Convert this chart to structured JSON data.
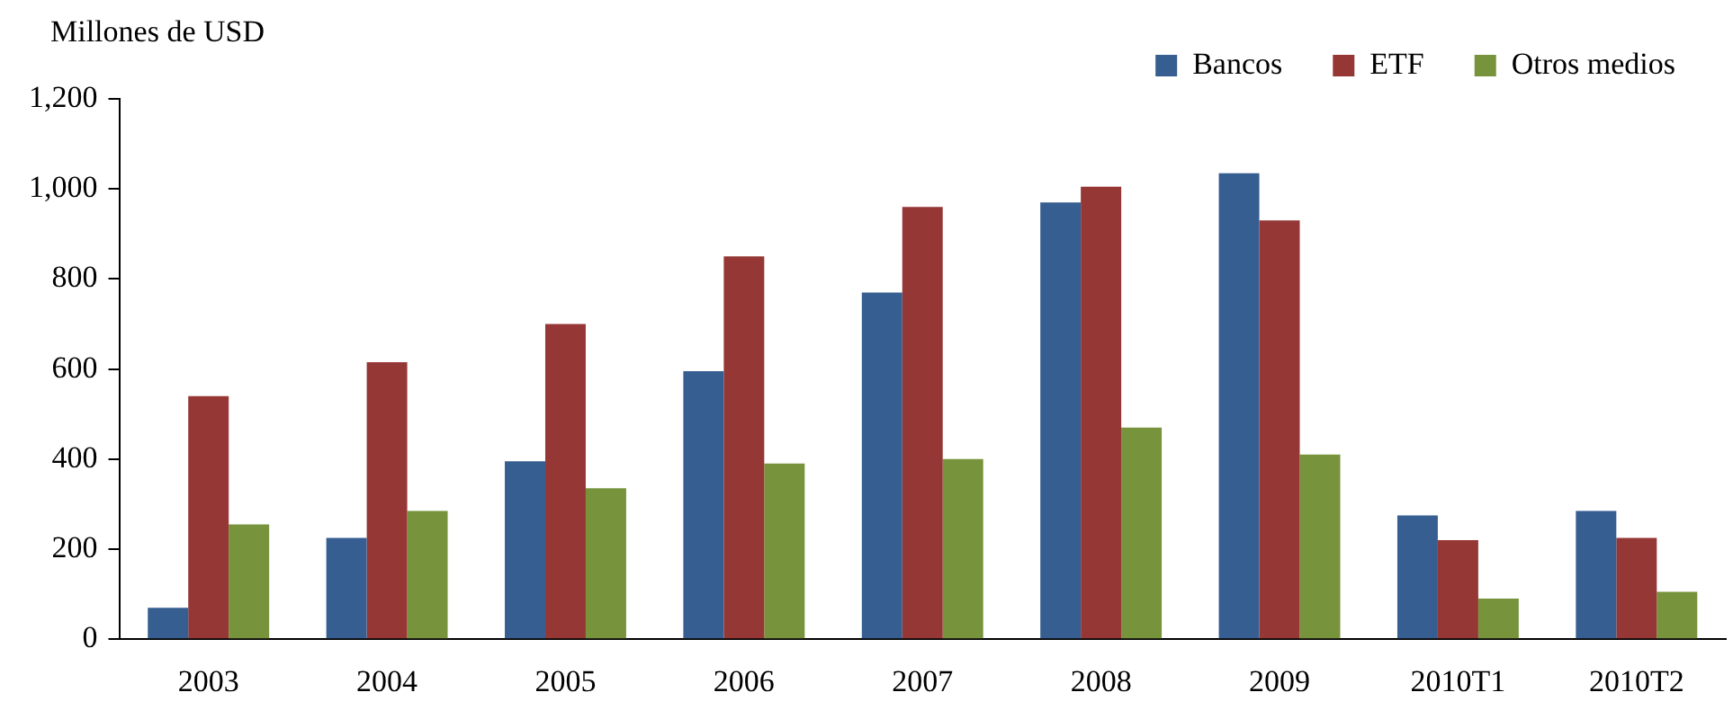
{
  "chart_data": {
    "type": "bar",
    "ylabel": "Millones de USD",
    "categories": [
      "2003",
      "2004",
      "2005",
      "2006",
      "2007",
      "2008",
      "2009",
      "2010T1",
      "2010T2"
    ],
    "series": [
      {
        "name": "Bancos",
        "color": "#375e91",
        "values": [
          70,
          225,
          395,
          595,
          770,
          970,
          1035,
          275,
          285
        ]
      },
      {
        "name": "ETF",
        "color": "#953735",
        "values": [
          540,
          615,
          700,
          850,
          960,
          1005,
          930,
          220,
          225
        ]
      },
      {
        "name": "Otros medios",
        "color": "#77933c",
        "values": [
          255,
          285,
          335,
          390,
          400,
          470,
          410,
          90,
          105
        ]
      }
    ],
    "ylim": [
      0,
      1200
    ],
    "yticks": [
      {
        "value": 0,
        "label": "0"
      },
      {
        "value": 200,
        "label": "200"
      },
      {
        "value": 400,
        "label": "400"
      },
      {
        "value": 600,
        "label": "600"
      },
      {
        "value": 800,
        "label": "800"
      },
      {
        "value": 1000,
        "label": "1,000"
      },
      {
        "value": 1200,
        "label": "1,200"
      }
    ],
    "grid": false,
    "legend": "top right"
  }
}
